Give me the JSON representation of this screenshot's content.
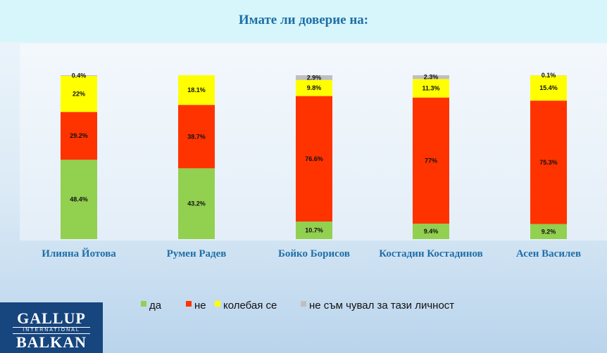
{
  "chart_data": {
    "type": "bar",
    "stacked": true,
    "title": "Имате  ли доверие на:",
    "categories": [
      "Илияна Йотова",
      "Румен Радев",
      "Бойко Борисов",
      "Костадин Костадинов",
      "Асен Василев"
    ],
    "series": [
      {
        "name": "да",
        "color": "#92d050",
        "values": [
          48.4,
          43.2,
          10.7,
          9.4,
          9.2
        ],
        "labels": [
          "48.4%",
          "43.2%",
          "10.7%",
          "9.4%",
          "9.2%"
        ]
      },
      {
        "name": "не",
        "color": "#ff3300",
        "values": [
          29.2,
          38.7,
          76.6,
          77,
          75.3
        ],
        "labels": [
          "29.2%",
          "38.7%",
          "76.6%",
          "77%",
          "75.3%"
        ]
      },
      {
        "name": "колебая се",
        "color": "#ffff00",
        "values": [
          22,
          18.1,
          9.8,
          11.3,
          15.4
        ],
        "labels": [
          "22%",
          "18.1%",
          "9.8%",
          "11.3%",
          "15.4%"
        ]
      },
      {
        "name": "не съм чувал за тази личност",
        "color": "#bfbfbf",
        "values": [
          0.4,
          0,
          2.9,
          2.3,
          0.1
        ],
        "labels": [
          "0.4%",
          "",
          "2.9%",
          "2.3%",
          "0.1%"
        ]
      }
    ],
    "ylim": [
      0,
      100
    ],
    "legend_position": "bottom"
  },
  "logo": {
    "line1": "GALLUP",
    "line2": "INTERNATIONAL",
    "line3": "BALKAN"
  }
}
